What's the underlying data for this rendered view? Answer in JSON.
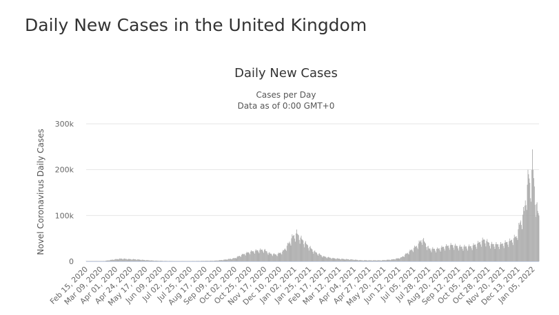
{
  "page": {
    "title": "Daily New Cases in the United Kingdom"
  },
  "chart_data": {
    "type": "bar",
    "title": "Daily New Cases",
    "subtitle_lines": [
      "Cases per Day",
      "Data as of 0:00 GMT+0"
    ],
    "ylabel": "Novel Coronavirus Daily Cases",
    "xlabel": "",
    "ylim": [
      0,
      300000
    ],
    "y_ticks": [
      0,
      100000,
      200000,
      300000
    ],
    "y_tick_labels": [
      "0",
      "100k",
      "200k",
      "300k"
    ],
    "grid": true,
    "legend": "none",
    "bar_color": "#a8a8a8",
    "x_range": [
      "2020-02-15",
      "2022-01-14"
    ],
    "x_tick_labels": [
      "Feb 15, 2020",
      "Mar 09, 2020",
      "Apr 01, 2020",
      "Apr 24, 2020",
      "May 17, 2020",
      "Jun 09, 2020",
      "Jul 02, 2020",
      "Jul 25, 2020",
      "Aug 17, 2020",
      "Sep 09, 2020",
      "Oct 02, 2020",
      "Oct 25, 2020",
      "Nov 17, 2020",
      "Dec 10, 2020",
      "Jan 02, 2021",
      "Jan 25, 2021",
      "Feb 17, 2021",
      "Mar 12, 2021",
      "Apr 04, 2021",
      "Apr 27, 2021",
      "May 20, 2021",
      "Jun 12, 2021",
      "Jul 05, 2021",
      "Jul 28, 2021",
      "Aug 20, 2021",
      "Sep 12, 2021",
      "Oct 05, 2021",
      "Oct 28, 2021",
      "Nov 20, 2021",
      "Dec 13, 2021",
      "Jan 05, 2022"
    ],
    "series": [
      {
        "points": [
          [
            "2020-02-15",
            0
          ],
          [
            "2020-03-01",
            100
          ],
          [
            "2020-03-15",
            1000
          ],
          [
            "2020-03-28",
            4000
          ],
          [
            "2020-04-05",
            5500
          ],
          [
            "2020-04-10",
            6000
          ],
          [
            "2020-04-20",
            5000
          ],
          [
            "2020-05-01",
            4500
          ],
          [
            "2020-05-15",
            3000
          ],
          [
            "2020-06-01",
            1500
          ],
          [
            "2020-06-15",
            1000
          ],
          [
            "2020-07-01",
            700
          ],
          [
            "2020-07-20",
            600
          ],
          [
            "2020-08-10",
            1000
          ],
          [
            "2020-09-01",
            1500
          ],
          [
            "2020-09-15",
            3500
          ],
          [
            "2020-10-01",
            7000
          ],
          [
            "2020-10-15",
            16000
          ],
          [
            "2020-10-25",
            21000
          ],
          [
            "2020-11-05",
            24000
          ],
          [
            "2020-11-15",
            26000
          ],
          [
            "2020-11-25",
            17000
          ],
          [
            "2020-12-05",
            15000
          ],
          [
            "2020-12-15",
            22000
          ],
          [
            "2020-12-22",
            36000
          ],
          [
            "2020-12-30",
            55000
          ],
          [
            "2021-01-05",
            62000
          ],
          [
            "2021-01-12",
            50000
          ],
          [
            "2021-01-20",
            38000
          ],
          [
            "2021-02-01",
            22000
          ],
          [
            "2021-02-15",
            11000
          ],
          [
            "2021-03-01",
            7000
          ],
          [
            "2021-03-15",
            5500
          ],
          [
            "2021-04-01",
            4000
          ],
          [
            "2021-04-15",
            2500
          ],
          [
            "2021-05-01",
            2300
          ],
          [
            "2021-05-15",
            2300
          ],
          [
            "2021-06-01",
            4000
          ],
          [
            "2021-06-15",
            8000
          ],
          [
            "2021-07-01",
            25000
          ],
          [
            "2021-07-10",
            35000
          ],
          [
            "2021-07-18",
            50000
          ],
          [
            "2021-07-28",
            28000
          ],
          [
            "2021-08-10",
            27000
          ],
          [
            "2021-08-20",
            32000
          ],
          [
            "2021-09-01",
            36000
          ],
          [
            "2021-09-15",
            32000
          ],
          [
            "2021-10-01",
            33000
          ],
          [
            "2021-10-10",
            38000
          ],
          [
            "2021-10-21",
            48000
          ],
          [
            "2021-11-01",
            38000
          ],
          [
            "2021-11-15",
            37000
          ],
          [
            "2021-12-01",
            45000
          ],
          [
            "2021-12-10",
            55000
          ],
          [
            "2021-12-16",
            85000
          ],
          [
            "2021-12-22",
            110000
          ],
          [
            "2021-12-29",
            190000
          ],
          [
            "2022-01-01",
            162000
          ],
          [
            "2022-01-04",
            218000
          ],
          [
            "2022-01-08",
            145000
          ],
          [
            "2022-01-11",
            115000
          ],
          [
            "2022-01-14",
            100000
          ]
        ]
      }
    ]
  }
}
